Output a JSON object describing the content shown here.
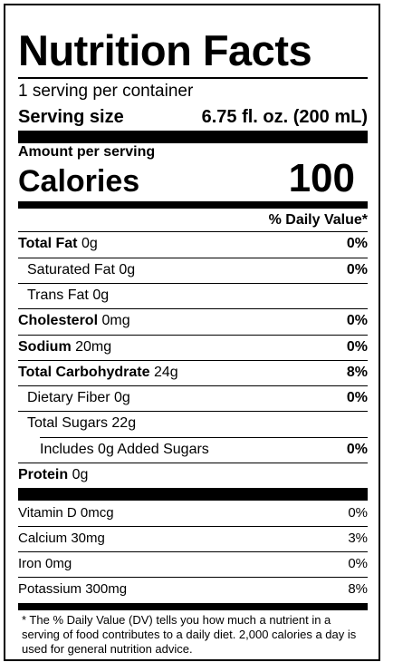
{
  "label": {
    "title": "Nutrition Facts",
    "servings_per_container": "1 serving per container",
    "serving_size_label": "Serving size",
    "serving_size_value": "6.75 fl. oz. (200 mL)",
    "amount_per_serving": "Amount per serving",
    "calories_label": "Calories",
    "calories_value": "100",
    "daily_value_header": "% Daily Value*",
    "nutrients": [
      {
        "name": "Total Fat",
        "amount": "0g",
        "dv": "0%"
      },
      {
        "name": "Saturated Fat",
        "amount": "0g",
        "dv": "0%"
      },
      {
        "name": "Trans Fat",
        "amount": "0g",
        "dv": ""
      },
      {
        "name": "Cholesterol",
        "amount": "0mg",
        "dv": "0%"
      },
      {
        "name": "Sodium",
        "amount": "20mg",
        "dv": "0%"
      },
      {
        "name": "Total Carbohydrate",
        "amount": "24g",
        "dv": "8%"
      },
      {
        "name": "Dietary Fiber",
        "amount": "0g",
        "dv": "0%"
      },
      {
        "name": "Total Sugars",
        "amount": "22g",
        "dv": ""
      },
      {
        "name": "Includes 0g Added Sugars",
        "amount": "",
        "dv": "0%"
      },
      {
        "name": "Protein",
        "amount": "0g",
        "dv": ""
      }
    ],
    "vitamins": [
      {
        "name": "Vitamin D 0mcg",
        "dv": "0%"
      },
      {
        "name": "Calcium 30mg",
        "dv": "3%"
      },
      {
        "name": "Iron 0mg",
        "dv": "0%"
      },
      {
        "name": "Potassium 300mg",
        "dv": "8%"
      }
    ],
    "footnote": "* The % Daily Value (DV) tells you how much a nutrient in a serving of food contributes to a daily diet. 2,000 calories a day is used for general nutrition advice."
  }
}
